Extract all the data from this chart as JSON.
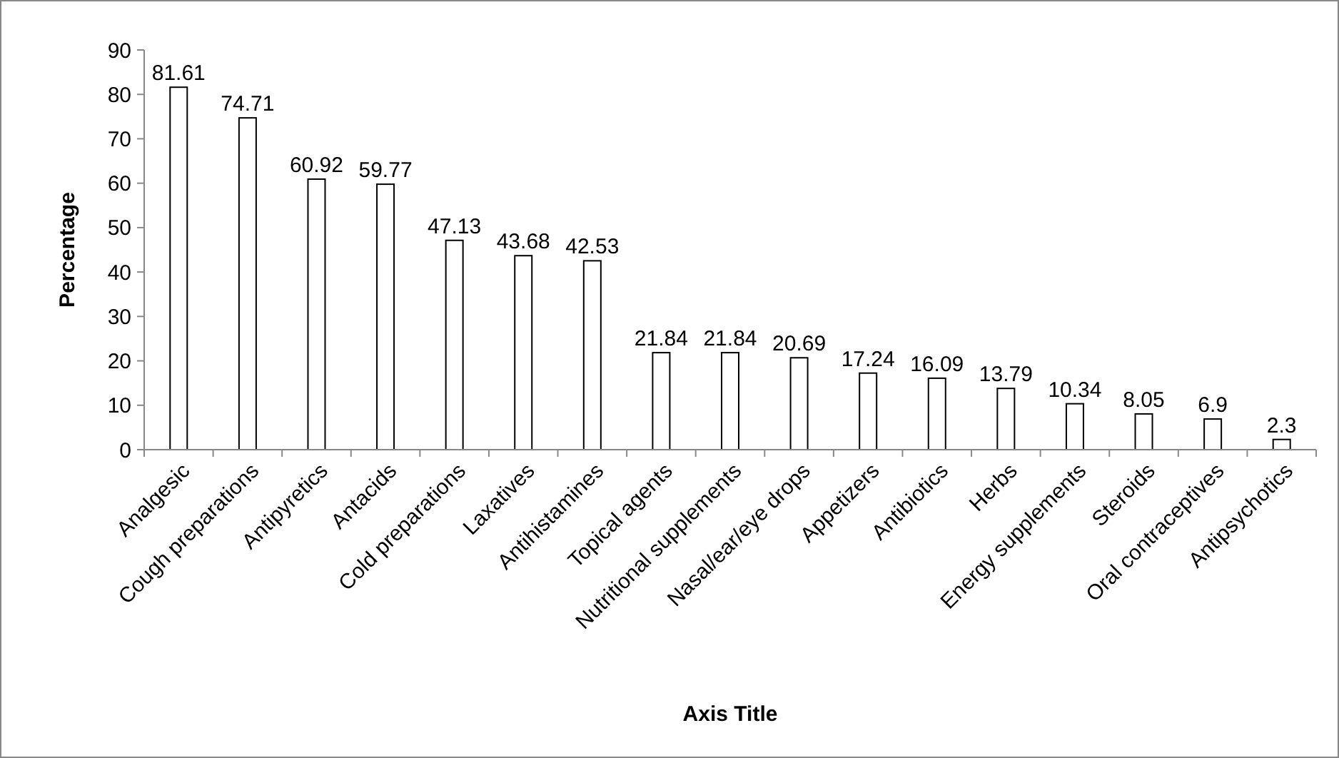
{
  "chart_data": {
    "type": "bar",
    "ylabel": "Percentage",
    "xlabel": "Axis Title",
    "categories": [
      "Analgesic",
      "Cough preparations",
      "Antipyretics",
      "Antacids",
      "Cold preparations",
      "Laxatives",
      "Antihistamines",
      "Topical agents",
      "Nutritional supplements",
      "Nasal/ear/eye drops",
      "Appetizers",
      "Antibiotics",
      "Herbs",
      "Energy supplements",
      "Steroids",
      "Oral contraceptives",
      "Antipsychotics"
    ],
    "values": [
      81.61,
      74.71,
      60.92,
      59.77,
      47.13,
      43.68,
      42.53,
      21.84,
      21.84,
      20.69,
      17.24,
      16.09,
      13.79,
      10.34,
      8.05,
      6.9,
      2.3
    ],
    "color": "#ffffff",
    "ylim": [
      0,
      90
    ],
    "yticks": [
      0,
      10,
      20,
      30,
      40,
      50,
      60,
      70,
      80,
      90
    ],
    "grid": false,
    "data_labels": true
  }
}
